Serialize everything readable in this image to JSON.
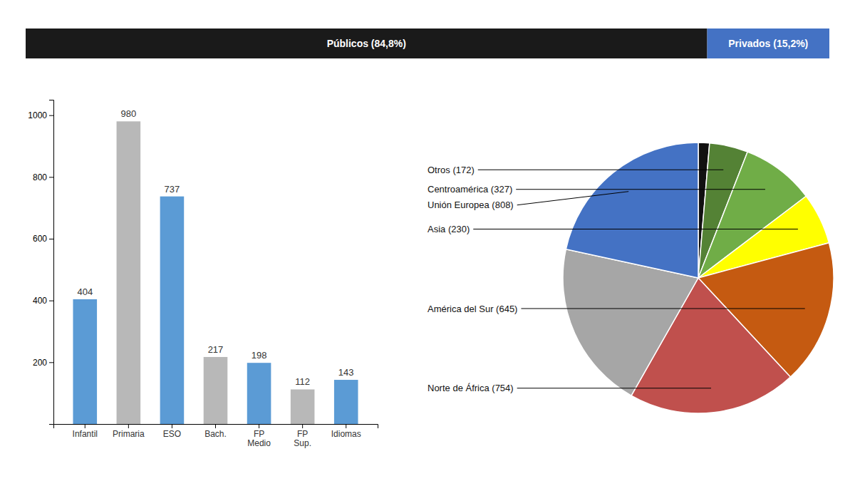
{
  "chart_data": [
    {
      "type": "bar",
      "orientation": "horizontal",
      "stacked": true,
      "data_labels": true,
      "tick_labels": false,
      "categories": [
        null
      ],
      "xlim": [
        0,
        100
      ],
      "series": [
        {
          "color": "#1a1a1a",
          "values": [
            84.8
          ],
          "value_labels": [
            "Públicos (84,8%)"
          ]
        },
        {
          "color": "#4472c4",
          "values": [
            15.2
          ],
          "value_labels": [
            "Privados (15,2%)"
          ]
        }
      ]
    },
    {
      "type": "bar",
      "data_labels": true,
      "categories": [
        "Infantil",
        "Primaria",
        "ESO",
        "Bach.",
        "FP\nMedio",
        "FP\nSup.",
        "Idiomas"
      ],
      "values": [
        404,
        980,
        737,
        217,
        198,
        112,
        143
      ],
      "colors": [
        "#5b9bd5",
        "#b8b8b8",
        "#5b9bd5",
        "#b8b8b8",
        "#5b9bd5",
        "#b8b8b8",
        "#5b9bd5"
      ],
      "ylim": [
        0,
        1050
      ],
      "yticks": [
        200,
        400,
        600,
        800,
        1000
      ]
    },
    {
      "type": "pie",
      "categories": [
        null,
        "Otros (172)",
        "Centroamérica (327)",
        "Asia (230)",
        "América del Sur (645)",
        "Norte de África (754)",
        null,
        "Unión Europea (808)"
      ],
      "values": [
        50,
        172,
        327,
        230,
        645,
        754,
        754,
        808
      ],
      "colors": [
        "#111111",
        "#548235",
        "#70ad47",
        "#ffff00",
        "#c55a11",
        "#c0504d",
        "#a6a6a6",
        "#4472c4"
      ]
    }
  ]
}
